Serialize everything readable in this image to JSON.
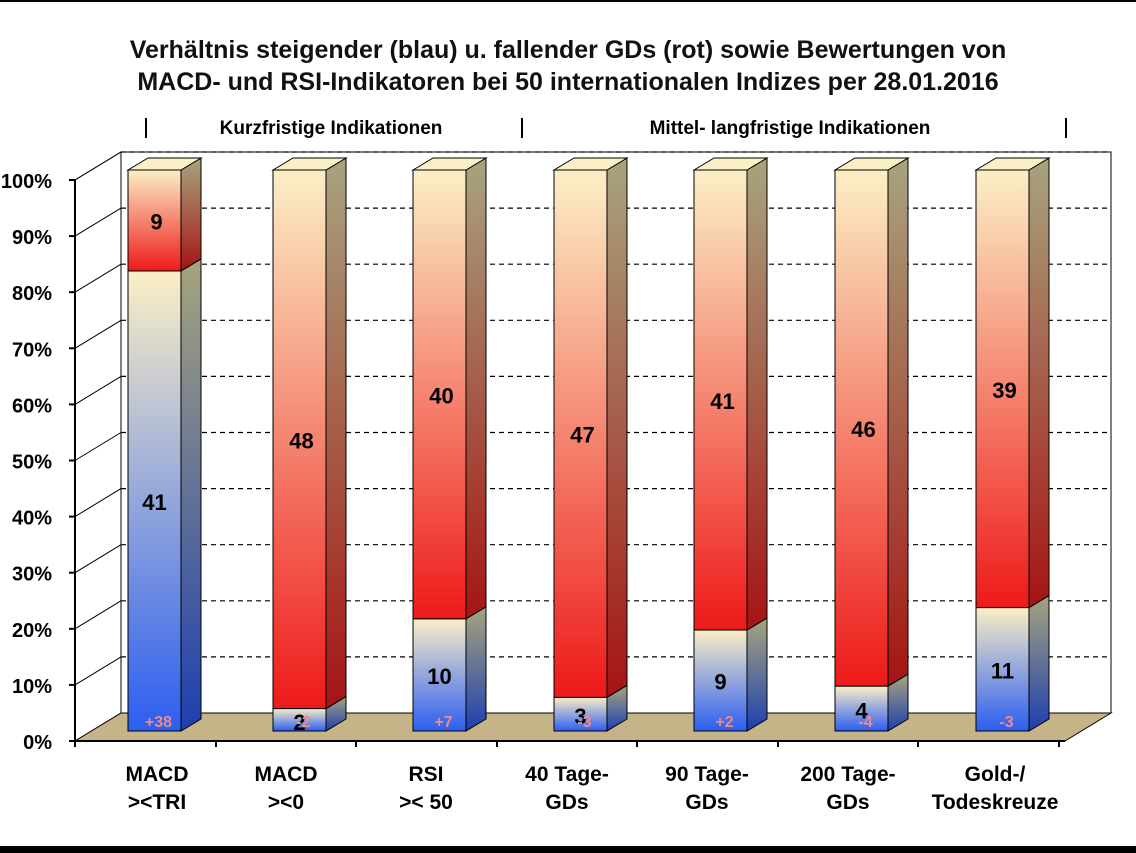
{
  "chart_data": {
    "type": "bar",
    "stacked": true,
    "title_lines": [
      "Verhältnis steigender (blau) u. fallender GDs (rot) sowie Bewertungen von",
      "MACD- und RSI-Indikatoren bei 50 internationalen Indizes per 28.01.2016"
    ],
    "section_labels": [
      "Kurzfristige Indikationen",
      "Mittel- langfristige Indikationen"
    ],
    "categories": [
      [
        "MACD",
        "><TRI"
      ],
      [
        "MACD",
        "><0"
      ],
      [
        "RSI",
        ">< 50"
      ],
      [
        "40 Tage-",
        "GDs"
      ],
      [
        "90 Tage-",
        "GDs"
      ],
      [
        "200 Tage-",
        "GDs"
      ],
      [
        "Gold-/",
        "Todeskreuze"
      ]
    ],
    "series": [
      {
        "name": "steigend (blau)",
        "values": [
          41,
          2,
          10,
          3,
          9,
          4,
          11
        ]
      },
      {
        "name": "fallend (rot)",
        "values": [
          9,
          48,
          40,
          47,
          41,
          46,
          39
        ]
      }
    ],
    "net_labels": [
      "+38",
      "-2",
      "+7",
      "-3",
      "+2",
      "-4",
      "-3"
    ],
    "y_ticks": [
      "0%",
      "10%",
      "20%",
      "30%",
      "40%",
      "50%",
      "60%",
      "70%",
      "80%",
      "90%",
      "100%"
    ],
    "ylim": [
      0,
      100
    ],
    "grid": true,
    "colors": {
      "blue": "#2c5ef0",
      "red": "#ee1a1a",
      "cream": "#fbefc6",
      "floor": "#c4b488",
      "side": "#a7a47e",
      "net_label": "#f08a8a"
    }
  }
}
